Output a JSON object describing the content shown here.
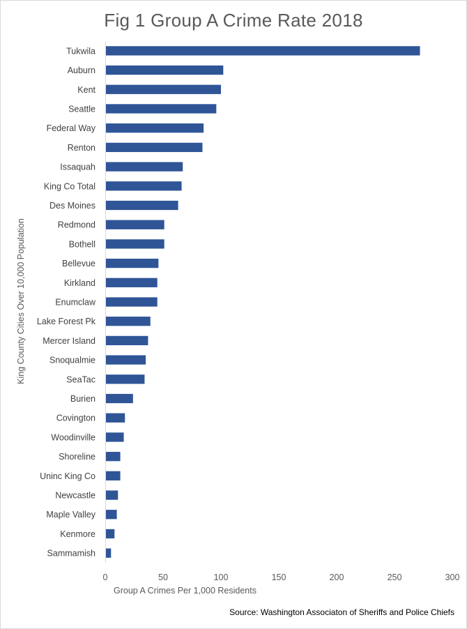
{
  "chart_data": {
    "type": "bar",
    "orientation": "horizontal",
    "title": "Fig 1 Group A Crime Rate 2018",
    "xlabel": "Group A Crimes Per 1,000 Residents",
    "ylabel": "King County Cities Over 10,000 Population",
    "categories": [
      "Tukwila",
      "Auburn",
      "Kent",
      "Seattle",
      "Federal Way",
      "Renton",
      "Issaquah",
      "King Co Total",
      "Des Moines",
      "Redmond",
      "Bothell",
      "Bellevue",
      "Kirkland",
      "Enumclaw",
      "Lake Forest Pk",
      "Mercer Island",
      "Snoqualmie",
      "SeaTac",
      "Burien",
      "Covington",
      "Woodinville",
      "Shoreline",
      "Uninc King Co",
      "Newcastle",
      "Maple Valley",
      "Kenmore",
      "Sammamish"
    ],
    "values": [
      272,
      102,
      100,
      96,
      85,
      84,
      67,
      66,
      63,
      51,
      51,
      46,
      45,
      45,
      39,
      37,
      35,
      34,
      24,
      17,
      16,
      13,
      13,
      11,
      10,
      8,
      5
    ],
    "xlim": [
      0,
      300
    ],
    "xticks": [
      "0",
      "50",
      "100",
      "150",
      "200",
      "250",
      "300"
    ],
    "grid": false,
    "bar_color": "#2f5597"
  },
  "source": "Source: Washington Associaton of Sheriffs and Police Chiefs"
}
